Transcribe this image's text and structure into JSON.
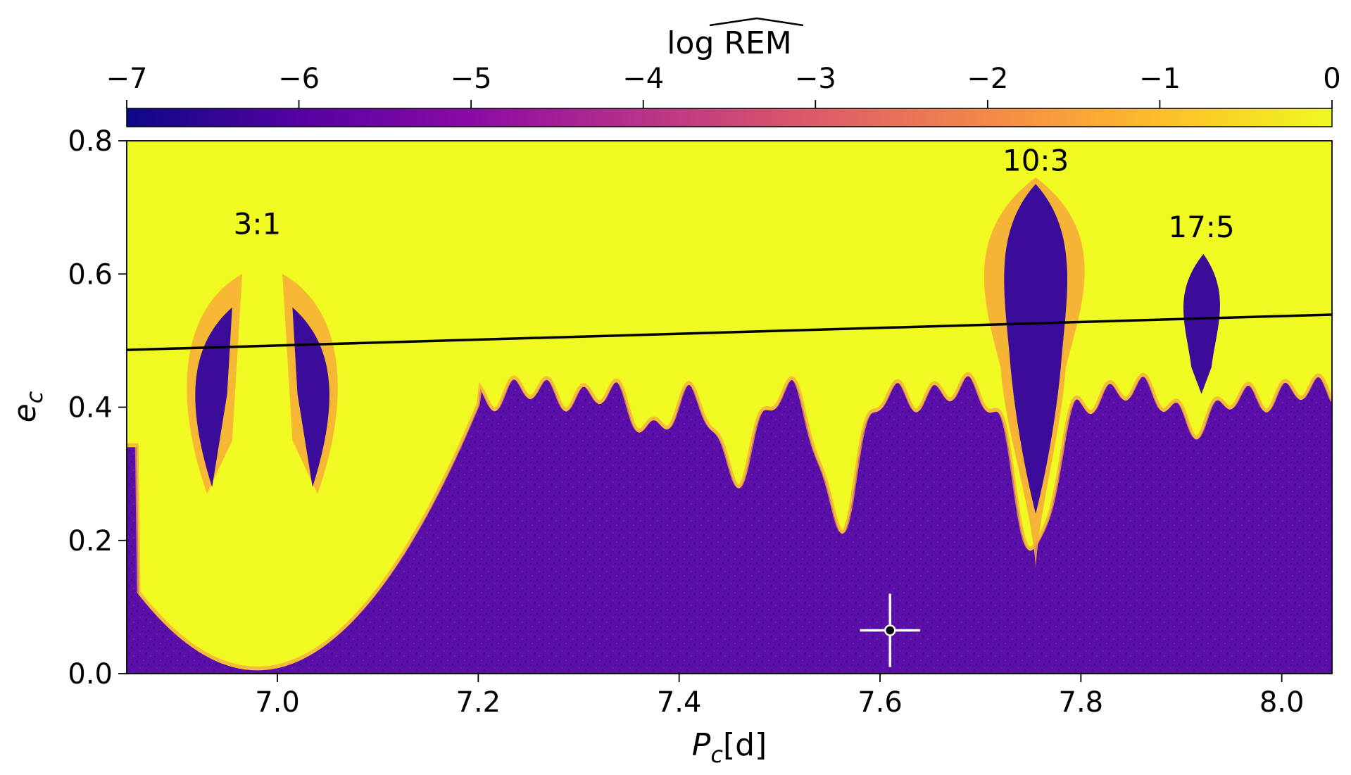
{
  "chart_data": {
    "type": "heatmap",
    "xlabel": "[d]",
    "xlabel_symbol": "P",
    "xlabel_sub": "c",
    "ylabel_symbol": "e",
    "ylabel_sub": "c",
    "xlim": [
      6.85,
      8.05
    ],
    "ylim": [
      0.0,
      0.8
    ],
    "x_ticks": [
      7.0,
      7.2,
      7.4,
      7.6,
      7.8,
      8.0
    ],
    "x_tick_labels": [
      "7.0",
      "7.2",
      "7.4",
      "7.6",
      "7.8",
      "8.0"
    ],
    "y_ticks": [
      0.0,
      0.2,
      0.4,
      0.6,
      0.8
    ],
    "y_tick_labels": [
      "0.0",
      "0.2",
      "0.4",
      "0.6",
      "0.8"
    ],
    "colorbar": {
      "label": "log REM",
      "location": "top",
      "range": [
        -7,
        0
      ],
      "ticks": [
        -7,
        -6,
        -5,
        -4,
        -3,
        -2,
        -1,
        0
      ],
      "tick_labels": [
        "−7",
        "−6",
        "−5",
        "−4",
        "−3",
        "−2",
        "−1",
        "0"
      ],
      "colormap": "plasma",
      "stops": [
        "#0d0887",
        "#5402a3",
        "#8b0aa5",
        "#b93289",
        "#db5c68",
        "#f48849",
        "#febd2a",
        "#f0f921"
      ]
    },
    "boundary_line": {
      "x": [
        6.85,
        8.05
      ],
      "y": [
        0.486,
        0.539
      ],
      "color": "#000000"
    },
    "resonances": [
      {
        "label": "3:1",
        "x": 6.98,
        "y": 0.66
      },
      {
        "label": "10:3",
        "x": 7.755,
        "y": 0.755
      },
      {
        "label": "17:5",
        "x": 7.92,
        "y": 0.655
      }
    ],
    "marker": {
      "x": 7.61,
      "y": 0.065,
      "xerr": 0.03,
      "yerr": 0.055,
      "color": "#ffffff",
      "face": "#000000"
    },
    "colors": {
      "chaotic": "#f0f921",
      "regular": "#5a0fa8",
      "transition": "#f7a83a",
      "stable_core": "#3b0c99"
    }
  }
}
